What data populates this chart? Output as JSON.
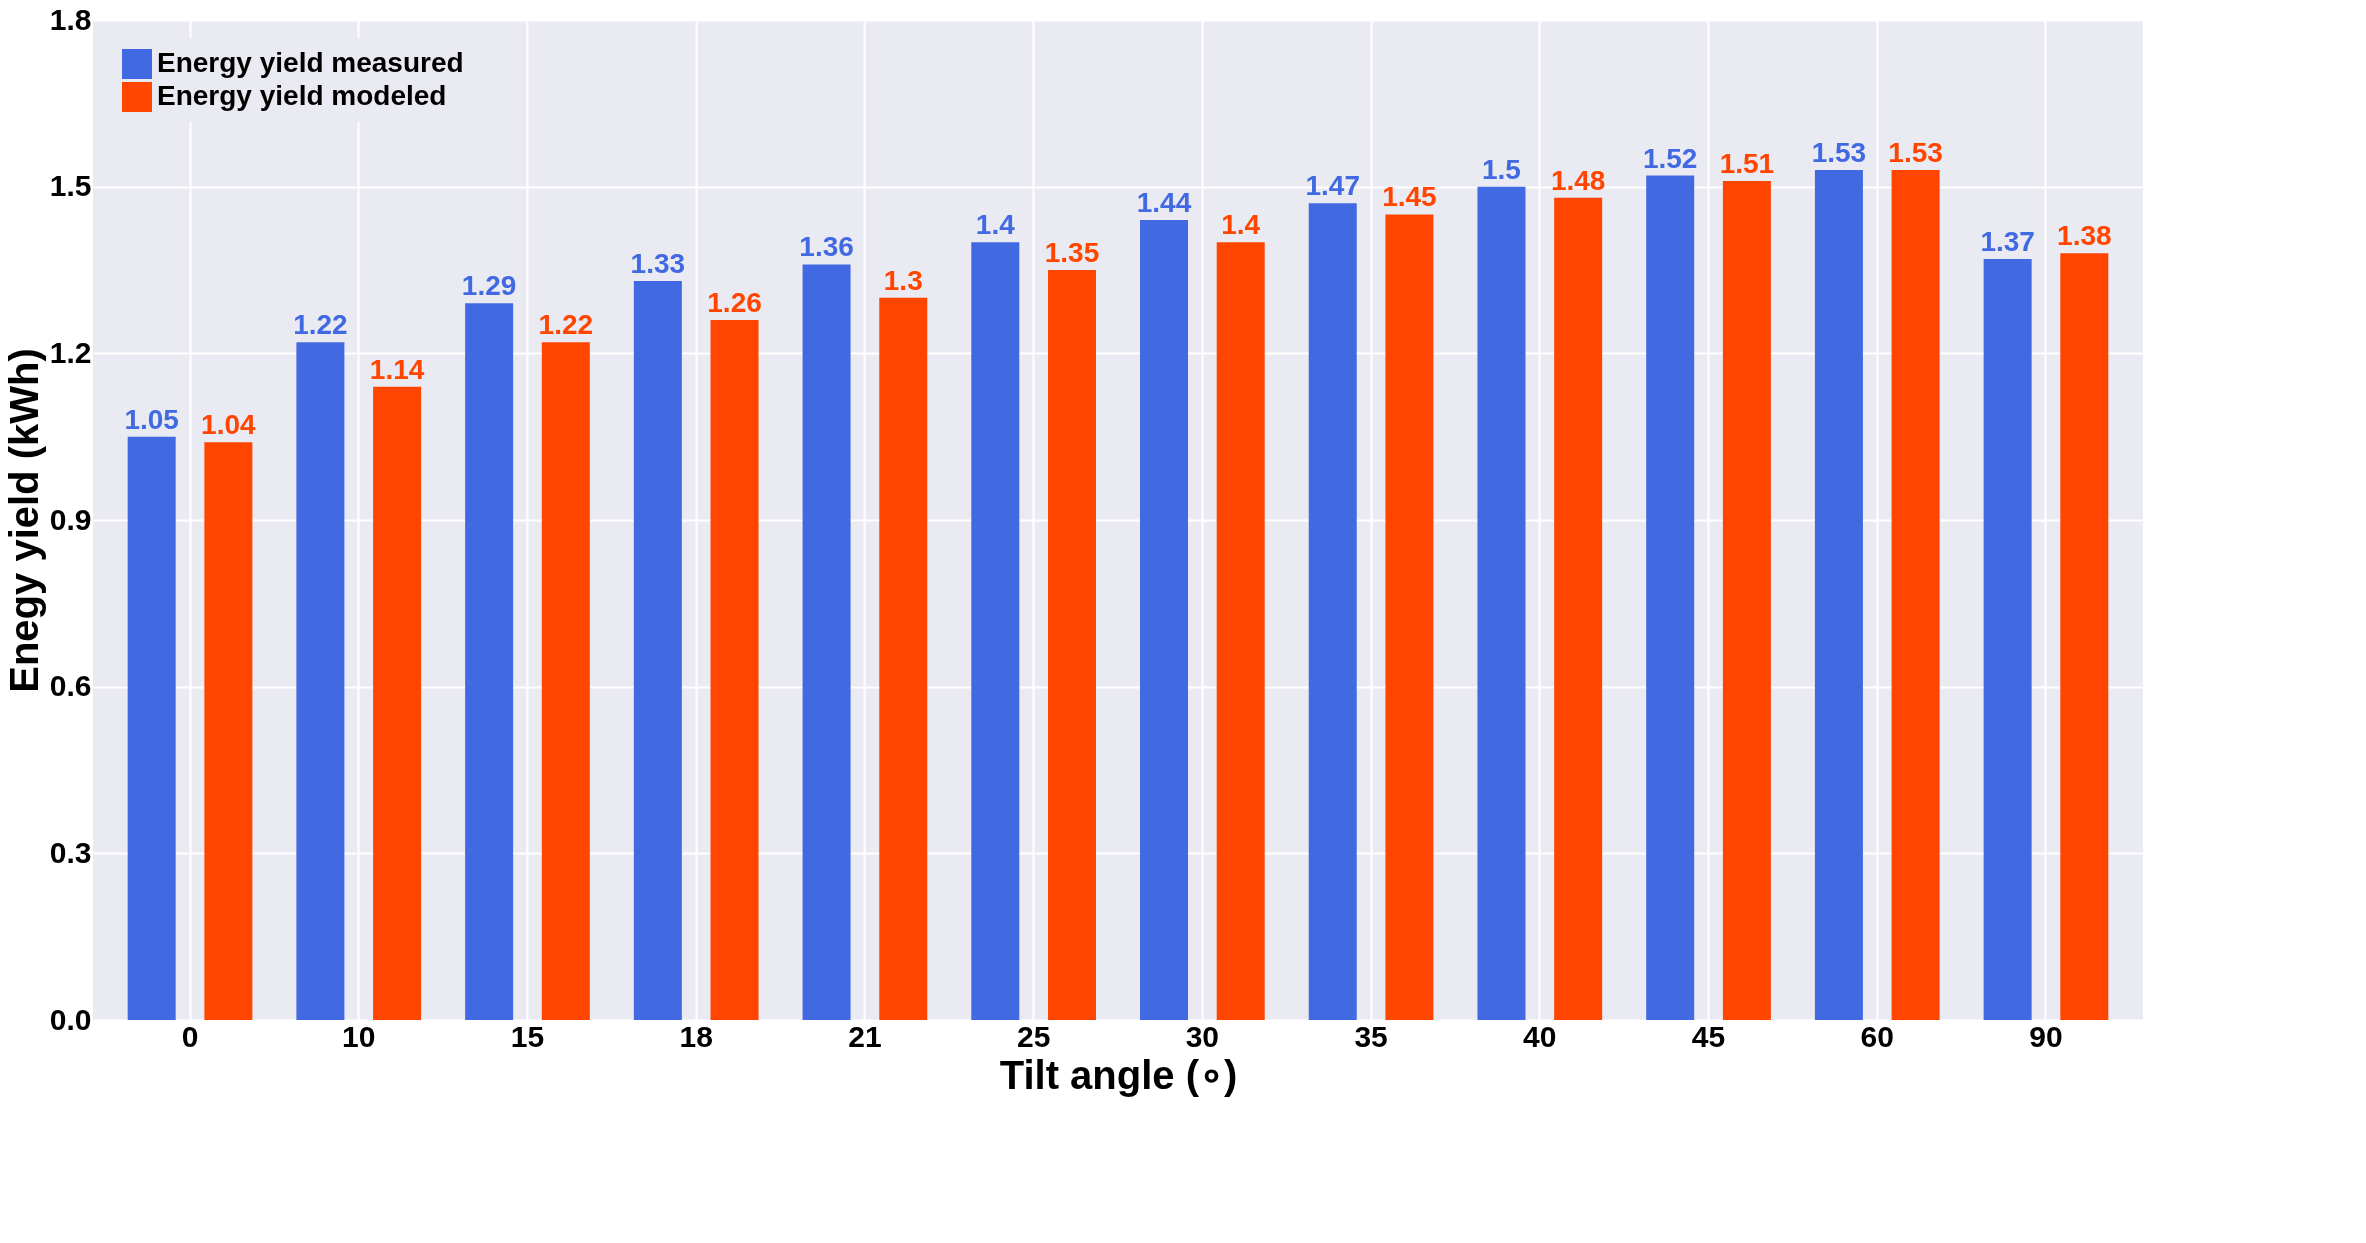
{
  "chart_data": {
    "type": "bar",
    "xlabel": "Tilt angle (∘)",
    "ylabel": "Enegy yield (kWh)",
    "categories": [
      "0",
      "10",
      "15",
      "18",
      "21",
      "25",
      "30",
      "35",
      "40",
      "45",
      "60",
      "90"
    ],
    "series": [
      {
        "name": "Energy yield measured",
        "color": "#4169e1",
        "values": [
          1.05,
          1.22,
          1.29,
          1.33,
          1.36,
          1.4,
          1.44,
          1.47,
          1.5,
          1.52,
          1.53,
          1.37
        ]
      },
      {
        "name": "Energy yield modeled",
        "color": "#ff4500",
        "values": [
          1.04,
          1.14,
          1.22,
          1.26,
          1.3,
          1.35,
          1.4,
          1.45,
          1.48,
          1.51,
          1.53,
          1.38
        ]
      }
    ],
    "ylim": [
      0,
      1.8
    ],
    "yticks": [
      {
        "value": 0,
        "label": "0.0"
      },
      0.3,
      0.6,
      0.9,
      1.2,
      1.5,
      1.8
    ],
    "grid": true,
    "legend": "top left",
    "data_labels": true
  }
}
